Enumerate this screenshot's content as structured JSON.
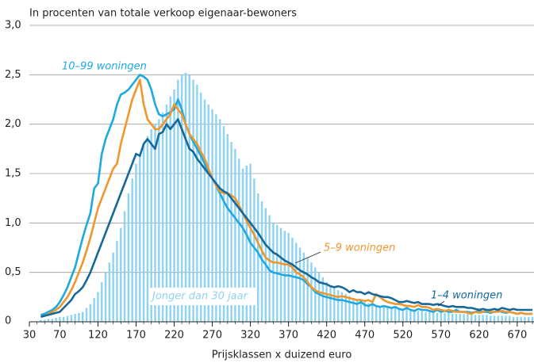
{
  "chart_data": {
    "type": "line",
    "title": "In procenten van totale verkoop eigenaar-bewoners",
    "x_label": "Prijsklassen x duizend euro",
    "x": [
      45,
      50,
      55,
      60,
      65,
      70,
      75,
      80,
      85,
      90,
      95,
      100,
      105,
      110,
      115,
      120,
      125,
      130,
      135,
      140,
      145,
      150,
      155,
      160,
      165,
      170,
      175,
      180,
      185,
      190,
      195,
      200,
      205,
      210,
      215,
      220,
      225,
      230,
      235,
      240,
      245,
      250,
      255,
      260,
      265,
      270,
      275,
      280,
      285,
      290,
      295,
      300,
      305,
      310,
      315,
      320,
      325,
      330,
      335,
      340,
      345,
      350,
      355,
      360,
      365,
      370,
      375,
      380,
      385,
      390,
      395,
      400,
      405,
      410,
      415,
      420,
      425,
      430,
      435,
      440,
      445,
      450,
      455,
      460,
      465,
      470,
      475,
      480,
      485,
      490,
      495,
      500,
      505,
      510,
      515,
      520,
      525,
      530,
      535,
      540,
      545,
      550,
      555,
      560,
      565,
      570,
      575,
      580,
      585,
      590,
      595,
      600,
      605,
      610,
      615,
      620,
      625,
      630,
      635,
      640,
      645,
      650,
      655,
      660,
      665,
      670,
      675,
      680,
      685,
      690
    ],
    "xlim": [
      30,
      692
    ],
    "xticks": [
      30,
      70,
      120,
      170,
      220,
      270,
      320,
      370,
      420,
      470,
      520,
      570,
      620,
      670
    ],
    "ylim": [
      0,
      3
    ],
    "yticks": [
      0,
      {
        "value": 0.5,
        "label": "0,5"
      },
      {
        "value": 1,
        "label": "1,0"
      },
      {
        "value": 1.5,
        "label": "1,5"
      },
      {
        "value": 2,
        "label": "2,0"
      },
      {
        "value": 2.5,
        "label": "2,5"
      },
      {
        "value": 3,
        "label": "3,0"
      }
    ],
    "grid": true,
    "series": [
      {
        "name": "Jonger dan 30 jaar",
        "type": "bar",
        "color": "#8fd3f2",
        "values": [
          0.02,
          0.02,
          0.03,
          0.03,
          0.04,
          0.05,
          0.05,
          0.06,
          0.07,
          0.08,
          0.09,
          0.1,
          0.14,
          0.18,
          0.24,
          0.3,
          0.4,
          0.5,
          0.6,
          0.7,
          0.82,
          0.95,
          1.12,
          1.3,
          1.45,
          1.6,
          1.7,
          1.8,
          1.88,
          1.95,
          2.0,
          2.05,
          2.12,
          2.2,
          2.28,
          2.35,
          2.45,
          2.5,
          2.52,
          2.5,
          2.45,
          2.4,
          2.32,
          2.25,
          2.2,
          2.15,
          2.1,
          2.05,
          1.98,
          1.9,
          1.82,
          1.75,
          1.65,
          1.55,
          1.58,
          1.6,
          1.45,
          1.3,
          1.22,
          1.15,
          1.08,
          1.0,
          0.98,
          0.95,
          0.92,
          0.9,
          0.85,
          0.8,
          0.75,
          0.7,
          0.65,
          0.6,
          0.55,
          0.5,
          0.45,
          0.4,
          0.37,
          0.34,
          0.32,
          0.3,
          0.28,
          0.26,
          0.24,
          0.22,
          0.21,
          0.2,
          0.19,
          0.18,
          0.17,
          0.16,
          0.16,
          0.15,
          0.15,
          0.14,
          0.14,
          0.13,
          0.13,
          0.12,
          0.12,
          0.11,
          0.11,
          0.1,
          0.1,
          0.1,
          0.09,
          0.09,
          0.09,
          0.09,
          0.08,
          0.08,
          0.08,
          0.08,
          0.08,
          0.07,
          0.07,
          0.07,
          0.07,
          0.07,
          0.06,
          0.06,
          0.06,
          0.06,
          0.06,
          0.06,
          0.05,
          0.05,
          0.05,
          0.05,
          0.05,
          0.05
        ]
      },
      {
        "name": "10–99 woningen",
        "color": "#1ea9e1",
        "values": [
          0.07,
          0.08,
          0.1,
          0.12,
          0.15,
          0.2,
          0.27,
          0.35,
          0.45,
          0.55,
          0.7,
          0.85,
          0.98,
          1.1,
          1.35,
          1.4,
          1.7,
          1.85,
          1.95,
          2.05,
          2.2,
          2.3,
          2.32,
          2.35,
          2.4,
          2.45,
          2.5,
          2.48,
          2.45,
          2.35,
          2.2,
          2.1,
          2.08,
          2.1,
          2.12,
          2.15,
          2.25,
          2.15,
          2.0,
          1.9,
          1.82,
          1.75,
          1.68,
          1.6,
          1.52,
          1.45,
          1.38,
          1.3,
          1.22,
          1.15,
          1.1,
          1.05,
          1.0,
          0.95,
          0.88,
          0.8,
          0.75,
          0.7,
          0.63,
          0.58,
          0.52,
          0.5,
          0.49,
          0.48,
          0.47,
          0.47,
          0.46,
          0.45,
          0.44,
          0.42,
          0.38,
          0.35,
          0.3,
          0.28,
          0.26,
          0.25,
          0.24,
          0.23,
          0.22,
          0.22,
          0.21,
          0.2,
          0.19,
          0.18,
          0.2,
          0.17,
          0.16,
          0.18,
          0.16,
          0.15,
          0.16,
          0.15,
          0.14,
          0.15,
          0.13,
          0.12,
          0.14,
          0.12,
          0.11,
          0.13,
          0.12,
          0.12,
          0.11,
          0.1,
          0.12,
          0.1,
          0.11,
          0.1,
          0.1,
          0.12,
          0.1,
          0.1,
          0.1,
          0.09,
          0.1,
          0.11,
          0.1,
          0.1,
          0.09,
          0.1,
          0.11,
          0.1,
          0.09,
          0.1,
          0.09,
          0.08,
          0.09,
          0.08,
          0.08,
          0.08
        ]
      },
      {
        "name": "5–9 woningen",
        "color": "#f0962e",
        "values": [
          0.05,
          0.06,
          0.08,
          0.1,
          0.12,
          0.15,
          0.2,
          0.25,
          0.32,
          0.4,
          0.5,
          0.6,
          0.72,
          0.85,
          1.0,
          1.15,
          1.25,
          1.35,
          1.45,
          1.55,
          1.6,
          1.8,
          1.95,
          2.1,
          2.25,
          2.35,
          2.45,
          2.2,
          2.05,
          2.0,
          1.95,
          1.95,
          2.0,
          2.05,
          2.1,
          2.2,
          2.15,
          2.1,
          2.0,
          1.9,
          1.85,
          1.8,
          1.72,
          1.65,
          1.55,
          1.45,
          1.38,
          1.32,
          1.3,
          1.3,
          1.28,
          1.25,
          1.18,
          1.1,
          1.02,
          0.95,
          0.88,
          0.8,
          0.72,
          0.65,
          0.62,
          0.6,
          0.6,
          0.59,
          0.58,
          0.58,
          0.55,
          0.5,
          0.48,
          0.45,
          0.4,
          0.35,
          0.32,
          0.3,
          0.29,
          0.28,
          0.27,
          0.26,
          0.25,
          0.26,
          0.25,
          0.24,
          0.23,
          0.22,
          0.22,
          0.21,
          0.22,
          0.2,
          0.28,
          0.25,
          0.22,
          0.2,
          0.19,
          0.18,
          0.18,
          0.17,
          0.16,
          0.16,
          0.15,
          0.17,
          0.15,
          0.15,
          0.14,
          0.12,
          0.13,
          0.12,
          0.11,
          0.12,
          0.11,
          0.1,
          0.1,
          0.1,
          0.09,
          0.08,
          0.1,
          0.09,
          0.1,
          0.12,
          0.1,
          0.1,
          0.1,
          0.11,
          0.1,
          0.1,
          0.09,
          0.08,
          0.09,
          0.08,
          0.08,
          0.08
        ]
      },
      {
        "name": "1–4 woningen",
        "color": "#16689a",
        "values": [
          0.05,
          0.06,
          0.07,
          0.08,
          0.09,
          0.1,
          0.14,
          0.18,
          0.22,
          0.28,
          0.31,
          0.35,
          0.42,
          0.5,
          0.6,
          0.7,
          0.8,
          0.9,
          1.0,
          1.1,
          1.2,
          1.3,
          1.4,
          1.5,
          1.6,
          1.7,
          1.68,
          1.8,
          1.85,
          1.8,
          1.75,
          1.9,
          1.92,
          2.0,
          1.95,
          2.0,
          2.05,
          1.95,
          1.85,
          1.75,
          1.72,
          1.65,
          1.6,
          1.55,
          1.5,
          1.45,
          1.4,
          1.35,
          1.32,
          1.3,
          1.25,
          1.2,
          1.15,
          1.1,
          1.05,
          1.0,
          0.95,
          0.9,
          0.84,
          0.78,
          0.74,
          0.7,
          0.68,
          0.65,
          0.62,
          0.6,
          0.58,
          0.55,
          0.52,
          0.5,
          0.48,
          0.45,
          0.43,
          0.4,
          0.39,
          0.38,
          0.36,
          0.35,
          0.36,
          0.35,
          0.33,
          0.3,
          0.32,
          0.3,
          0.3,
          0.28,
          0.3,
          0.28,
          0.27,
          0.26,
          0.25,
          0.25,
          0.24,
          0.22,
          0.2,
          0.2,
          0.21,
          0.2,
          0.19,
          0.2,
          0.18,
          0.18,
          0.18,
          0.17,
          0.18,
          0.17,
          0.16,
          0.15,
          0.16,
          0.15,
          0.15,
          0.15,
          0.14,
          0.14,
          0.13,
          0.12,
          0.13,
          0.12,
          0.12,
          0.13,
          0.12,
          0.14,
          0.13,
          0.12,
          0.13,
          0.12,
          0.12,
          0.12,
          0.12,
          0.12
        ]
      }
    ]
  }
}
